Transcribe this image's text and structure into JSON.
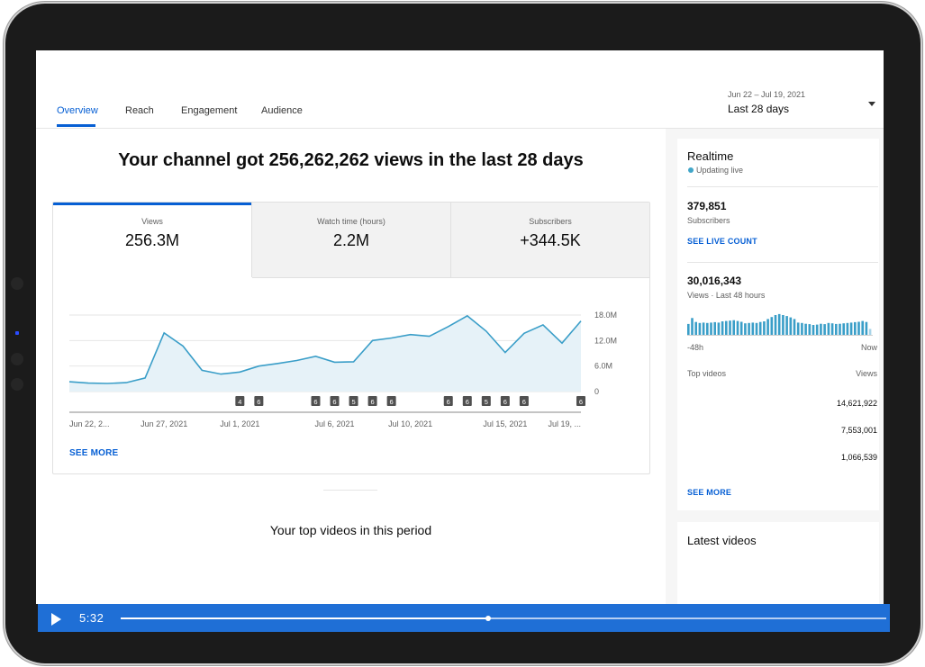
{
  "tabs": [
    {
      "label": "Overview",
      "active": true
    },
    {
      "label": "Reach"
    },
    {
      "label": "Engagement"
    },
    {
      "label": "Audience"
    }
  ],
  "date_range": {
    "range": "Jun 22 – Jul 19, 2021",
    "label": "Last 28 days"
  },
  "headline": "Your channel got 256,262,262 views in the last 28 days",
  "metrics": [
    {
      "label": "Views",
      "value": "256.3M"
    },
    {
      "label": "Watch time (hours)",
      "value": "2.2M"
    },
    {
      "label": "Subscribers",
      "value": "+344.5K"
    }
  ],
  "see_more": "SEE MORE",
  "top_videos_heading": "Your top videos in this period",
  "realtime": {
    "title": "Realtime",
    "status": "Updating live",
    "subscribers_value": "379,851",
    "subscribers_label": "Subscribers",
    "see_live_count": "SEE LIVE COUNT",
    "views_value": "30,016,343",
    "views_label": "Views · Last 48 hours",
    "axis_start": "-48h",
    "axis_end": "Now",
    "top_videos_label": "Top videos",
    "views_col_label": "Views",
    "top_video_views": [
      "14,621,922",
      "7,553,001",
      "1,066,539"
    ],
    "see_more": "SEE MORE",
    "bars": [
      0.55,
      0.85,
      0.65,
      0.6,
      0.62,
      0.6,
      0.62,
      0.64,
      0.62,
      0.68,
      0.7,
      0.72,
      0.74,
      0.7,
      0.66,
      0.58,
      0.6,
      0.62,
      0.6,
      0.65,
      0.68,
      0.8,
      0.9,
      1.0,
      1.05,
      1.0,
      0.95,
      0.88,
      0.8,
      0.62,
      0.6,
      0.56,
      0.54,
      0.5,
      0.52,
      0.56,
      0.54,
      0.6,
      0.58,
      0.55,
      0.56,
      0.58,
      0.6,
      0.62,
      0.64,
      0.66,
      0.7,
      0.65,
      0.3
    ]
  },
  "latest_videos_title": "Latest videos",
  "player": {
    "time": "5:32",
    "progress": 0.48
  },
  "colors": {
    "accent": "#065fd4",
    "line": "#3a9ec8",
    "player": "#1f6fd6"
  },
  "chart_data": {
    "type": "area",
    "x": [
      "Jun 22",
      "Jun 23",
      "Jun 24",
      "Jun 25",
      "Jun 26",
      "Jun 27",
      "Jun 28",
      "Jun 29",
      "Jun 30",
      "Jul 1",
      "Jul 2",
      "Jul 3",
      "Jul 4",
      "Jul 5",
      "Jul 6",
      "Jul 7",
      "Jul 8",
      "Jul 9",
      "Jul 10",
      "Jul 11",
      "Jul 12",
      "Jul 13",
      "Jul 14",
      "Jul 15",
      "Jul 16",
      "Jul 17",
      "Jul 18",
      "Jul 19"
    ],
    "series": [
      {
        "values": [
          2.3,
          2.0,
          1.9,
          2.1,
          3.2,
          13.8,
          10.7,
          5.0,
          4.1,
          4.6,
          6.0,
          6.6,
          7.3,
          8.3,
          6.9,
          7.0,
          12.0,
          12.6,
          13.4,
          13.0,
          15.3,
          17.8,
          14.2,
          9.2,
          13.7,
          15.7,
          11.4,
          16.6
        ]
      }
    ],
    "ylim": [
      0,
      18
    ],
    "ytick_labels": [
      "0",
      "6.0M",
      "12.0M",
      "18.0M"
    ],
    "xtick_labels": [
      {
        "i": 0,
        "label": "Jun 22, 2..."
      },
      {
        "i": 5,
        "label": "Jun 27, 2021"
      },
      {
        "i": 9,
        "label": "Jul 1, 2021"
      },
      {
        "i": 14,
        "label": "Jul 6, 2021"
      },
      {
        "i": 18,
        "label": "Jul 10, 2021"
      },
      {
        "i": 23,
        "label": "Jul 15, 2021"
      },
      {
        "i": 27,
        "label": "Jul 19, ..."
      }
    ],
    "annotations": [
      {
        "i": 9,
        "label": "4"
      },
      {
        "i": 10,
        "label": "6"
      },
      {
        "i": 13,
        "label": "6"
      },
      {
        "i": 14,
        "label": "6"
      },
      {
        "i": 15,
        "label": "5"
      },
      {
        "i": 16,
        "label": "6"
      },
      {
        "i": 17,
        "label": "6"
      },
      {
        "i": 20,
        "label": "6"
      },
      {
        "i": 21,
        "label": "6"
      },
      {
        "i": 22,
        "label": "5"
      },
      {
        "i": 23,
        "label": "6"
      },
      {
        "i": 24,
        "label": "6"
      },
      {
        "i": 27,
        "label": "6"
      }
    ],
    "grid": true
  }
}
